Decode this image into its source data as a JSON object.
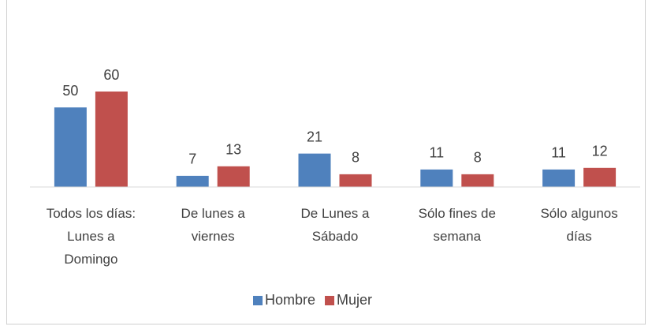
{
  "chart_data": {
    "type": "bar",
    "categories": [
      "Todos los días: Lunes a Domingo",
      "De lunes a viernes",
      "De Lunes a Sábado",
      "Sólo fines de semana",
      "Sólo algunos días"
    ],
    "series": [
      {
        "name": "Hombre",
        "color": "#4f81bd",
        "values": [
          50,
          7,
          21,
          11,
          11
        ]
      },
      {
        "name": "Mujer",
        "color": "#c0504d",
        "values": [
          60,
          13,
          8,
          8,
          12
        ]
      }
    ],
    "ylim": [
      0,
      60
    ],
    "legend": "bottom"
  }
}
